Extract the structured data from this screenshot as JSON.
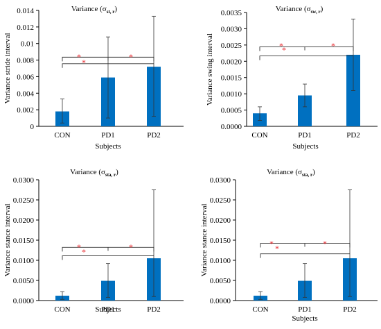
{
  "chart_data": [
    {
      "type": "bar",
      "title_main": "Variance (σ",
      "title_sub": "st, r",
      "title_close": ")",
      "ylabel": "Variance stride interval",
      "xlabel": "Subjects",
      "categories": [
        "CON",
        "PD1",
        "PD2"
      ],
      "values": [
        0.0018,
        0.0059,
        0.0072
      ],
      "error_upper": [
        0.0033,
        0.0108,
        0.0133
      ],
      "error_lower": [
        0.0004,
        0.001,
        0.0012
      ],
      "ylim": [
        0,
        0.014
      ],
      "yticks": [
        0,
        0.002,
        0.004,
        0.006,
        0.008,
        0.01,
        0.012,
        0.014
      ],
      "ytick_labels": [
        "0",
        "0.002",
        "0.004",
        "0.006",
        "0.008",
        "0.01",
        "0.012",
        "0.014"
      ],
      "brackets": [
        {
          "from": 0,
          "to": 2,
          "level": 0.0081,
          "star": "*"
        },
        {
          "from": 0,
          "to": 1,
          "level": 0.0079,
          "star": "*"
        },
        {
          "from": 1,
          "to": 2,
          "level": 0.0081,
          "star": "*"
        }
      ],
      "bar_color": "#0070C0",
      "star_color": "#E8262C"
    },
    {
      "type": "bar",
      "title_main": "Variance (σ",
      "title_sub": "sw, r",
      "title_close": ")",
      "ylabel": "Variance swing interval",
      "xlabel": "Subjects",
      "categories": [
        "CON",
        "PD1",
        "PD2"
      ],
      "values": [
        0.0004,
        0.00095,
        0.0022
      ],
      "error_upper": [
        0.0006,
        0.0013,
        0.0033
      ],
      "error_lower": [
        0.00018,
        0.0006,
        0.0011
      ],
      "ylim": [
        0,
        0.0035
      ],
      "yticks": [
        0,
        0.0005,
        0.001,
        0.0015,
        0.002,
        0.0025,
        0.003,
        0.0035
      ],
      "ytick_labels": [
        "0.0000",
        "0.0005",
        "0.0010",
        "0.0015",
        "0.0020",
        "0.0025",
        "0.0030",
        "0.0035"
      ],
      "brackets": [
        {
          "from": 0,
          "to": 2,
          "level": 0.00238,
          "star": "*"
        },
        {
          "from": 0,
          "to": 1,
          "level": 0.00225,
          "star": "*"
        },
        {
          "from": 1,
          "to": 2,
          "level": 0.00238,
          "star": "*"
        }
      ],
      "bar_color": "#0070C0",
      "star_color": "#E8262C"
    },
    {
      "type": "bar",
      "title_main": "Variance (σ",
      "title_sub": "sta, r",
      "title_close": ")",
      "ylabel": "Variance stance interval",
      "xlabel": "Subjects",
      "categories": [
        "CON",
        "PD1",
        "PD2"
      ],
      "values": [
        0.0012,
        0.0049,
        0.0105
      ],
      "error_upper": [
        0.0022,
        0.0092,
        0.0275
      ],
      "error_lower": [
        0.0003,
        0.0008,
        0.001
      ],
      "ylim": [
        0,
        0.03
      ],
      "yticks": [
        0,
        0.005,
        0.01,
        0.015,
        0.02,
        0.025,
        0.03
      ],
      "ytick_labels": [
        "0.0000",
        "0.0050",
        "0.0100",
        "0.0150",
        "0.0200",
        "0.0250",
        "0.0300"
      ],
      "brackets": [
        {
          "from": 0,
          "to": 2,
          "level": 0.0127,
          "star": "*"
        },
        {
          "from": 0,
          "to": 1,
          "level": 0.0118,
          "star": "*"
        },
        {
          "from": 1,
          "to": 2,
          "level": 0.0127,
          "star": "*"
        }
      ],
      "bar_color": "#0070C0",
      "star_color": "#E8262C"
    },
    {
      "type": "bar",
      "title_main": "Variance (σ",
      "title_sub": "sta, r",
      "title_close": ")",
      "ylabel": "Variance stance interval",
      "xlabel": "Subjects",
      "categories": [
        "CON",
        "PD1",
        "PD2"
      ],
      "values": [
        0.0012,
        0.0049,
        0.0105
      ],
      "error_upper": [
        0.0022,
        0.0092,
        0.0275
      ],
      "error_lower": [
        0.0003,
        0.0008,
        0.001
      ],
      "ylim": [
        0,
        0.03
      ],
      "yticks": [
        0,
        0.005,
        0.01,
        0.015,
        0.02,
        0.025,
        0.03
      ],
      "ytick_labels": [
        "0.0000",
        "0.0050",
        "0.0100",
        "0.0150",
        "0.0200",
        "0.0250",
        "0.0300"
      ],
      "brackets": [
        {
          "from": 0,
          "to": 2,
          "level": 0.0137,
          "star": "*"
        },
        {
          "from": 0,
          "to": 1,
          "level": 0.0123,
          "star": "*"
        },
        {
          "from": 1,
          "to": 2,
          "level": 0.0137,
          "star": "*"
        }
      ],
      "bar_color": "#0070C0",
      "star_color": "#E8262C"
    }
  ]
}
